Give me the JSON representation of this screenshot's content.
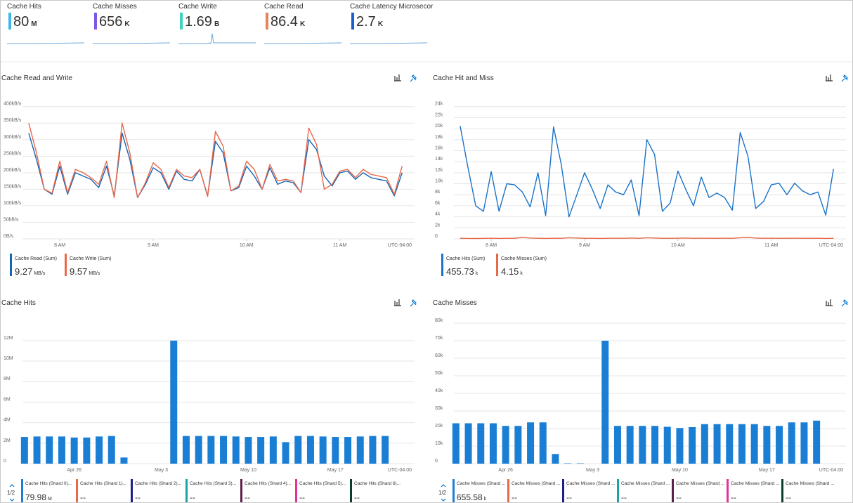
{
  "tiles": [
    {
      "title": "Cache Hits",
      "value": 80,
      "unit": "M",
      "color": "#41b4ea"
    },
    {
      "title": "Cache Misses",
      "value": 656,
      "unit": "K",
      "color": "#7b56e8"
    },
    {
      "title": "Cache Write",
      "value": 1.69,
      "unit": "B",
      "color": "#3fd1bd"
    },
    {
      "title": "Cache Read",
      "value": 86.4,
      "unit": "K",
      "color": "#e8845c"
    },
    {
      "title": "Cache Latency Microsecor",
      "value": 2.7,
      "unit": "K",
      "color": "#1a5fd0"
    }
  ],
  "chart_data": [
    {
      "type": "line",
      "title": "Cache Read and Write",
      "x": [
        7.667,
        7.75,
        7.833,
        7.917,
        8,
        8.083,
        8.167,
        8.25,
        8.333,
        8.417,
        8.5,
        8.583,
        8.667,
        8.75,
        8.833,
        8.917,
        9,
        9.083,
        9.167,
        9.25,
        9.333,
        9.417,
        9.5,
        9.583,
        9.667,
        9.75,
        9.833,
        9.917,
        10,
        10.083,
        10.167,
        10.25,
        10.333,
        10.417,
        10.5,
        10.583,
        10.667,
        10.75,
        10.833,
        10.917,
        11,
        11.083,
        11.167,
        11.25,
        11.333,
        11.417,
        11.5,
        11.583,
        11.667
      ],
      "xlim": [
        7.6,
        11.8
      ],
      "xticks": [
        {
          "value": 8,
          "label": "8 AM"
        },
        {
          "value": 9,
          "label": "9 AM"
        },
        {
          "value": 10,
          "label": "10 AM"
        },
        {
          "value": 11,
          "label": "11 AM"
        }
      ],
      "timezone": "UTC-04:00",
      "ylim": [
        0,
        410
      ],
      "yticks": [
        {
          "value": 0,
          "label": "0B/s"
        },
        {
          "value": 50,
          "label": "50kB/s"
        },
        {
          "value": 100,
          "label": "100kB/s"
        },
        {
          "value": 150,
          "label": "150kB/s"
        },
        {
          "value": 200,
          "label": "200kB/s"
        },
        {
          "value": 250,
          "label": "250kB/s"
        },
        {
          "value": 300,
          "label": "300kB/s"
        },
        {
          "value": 350,
          "label": "350kB/s"
        },
        {
          "value": 400,
          "label": "400kB/s"
        }
      ],
      "grid": true,
      "series": [
        {
          "name": "Cache Read (Sum)",
          "color": "#1664b4",
          "total": 9.27,
          "unit": "MB/s",
          "values": [
            320,
            240,
            150,
            135,
            220,
            135,
            200,
            190,
            180,
            155,
            220,
            130,
            320,
            240,
            125,
            165,
            215,
            200,
            150,
            205,
            180,
            175,
            210,
            130,
            295,
            260,
            145,
            155,
            220,
            190,
            150,
            215,
            165,
            175,
            170,
            140,
            300,
            270,
            190,
            160,
            200,
            205,
            180,
            200,
            185,
            180,
            175,
            130,
            200
          ]
        },
        {
          "name": "Cache Write (Sum)",
          "color": "#e8684a",
          "total": 9.57,
          "unit": "MB/s",
          "values": [
            350,
            260,
            150,
            138,
            235,
            140,
            210,
            200,
            185,
            165,
            235,
            125,
            350,
            260,
            125,
            170,
            230,
            210,
            155,
            210,
            190,
            185,
            210,
            128,
            325,
            280,
            145,
            160,
            235,
            210,
            150,
            225,
            175,
            180,
            175,
            140,
            335,
            285,
            150,
            165,
            205,
            210,
            185,
            210,
            195,
            190,
            185,
            135,
            220
          ]
        }
      ]
    },
    {
      "type": "line",
      "title": "Cache Hit and Miss",
      "x": [
        7.667,
        7.75,
        7.833,
        7.917,
        8,
        8.083,
        8.167,
        8.25,
        8.333,
        8.417,
        8.5,
        8.583,
        8.667,
        8.75,
        8.833,
        8.917,
        9,
        9.083,
        9.167,
        9.25,
        9.333,
        9.417,
        9.5,
        9.583,
        9.667,
        9.75,
        9.833,
        9.917,
        10,
        10.083,
        10.167,
        10.25,
        10.333,
        10.417,
        10.5,
        10.583,
        10.667,
        10.75,
        10.833,
        10.917,
        11,
        11.083,
        11.167,
        11.25,
        11.333,
        11.417,
        11.5,
        11.583,
        11.667
      ],
      "xlim": [
        7.6,
        11.8
      ],
      "xticks": [
        {
          "value": 8,
          "label": "8 AM"
        },
        {
          "value": 9,
          "label": "9 AM"
        },
        {
          "value": 10,
          "label": "10 AM"
        },
        {
          "value": 11,
          "label": "11 AM"
        }
      ],
      "timezone": "UTC-04:00",
      "ylim": [
        0,
        24600
      ],
      "yticks": [
        0,
        {
          "value": 2000,
          "label": "2k"
        },
        {
          "value": 4000,
          "label": "4k"
        },
        {
          "value": 6000,
          "label": "6k"
        },
        {
          "value": 8000,
          "label": "8k"
        },
        {
          "value": 10000,
          "label": "10k"
        },
        {
          "value": 12000,
          "label": "12k"
        },
        {
          "value": 14000,
          "label": "14k"
        },
        {
          "value": 16000,
          "label": "16k"
        },
        {
          "value": 18000,
          "label": "18k"
        },
        {
          "value": 20000,
          "label": "20k"
        },
        {
          "value": 22000,
          "label": "22k"
        },
        {
          "value": 24000,
          "label": "24k"
        }
      ],
      "grid": true,
      "series": [
        {
          "name": "Cache Hits (Sum)",
          "color": "#1a73c8",
          "total": 455.73,
          "unit": "k",
          "values": [
            20500,
            13000,
            6000,
            5000,
            12200,
            5000,
            10000,
            9800,
            8500,
            5800,
            12000,
            4200,
            20300,
            13500,
            4000,
            8000,
            12000,
            9000,
            5500,
            9800,
            8500,
            8000,
            10700,
            4200,
            18000,
            15300,
            5000,
            6500,
            12300,
            9000,
            6000,
            11200,
            7500,
            8300,
            7500,
            5200,
            19300,
            15000,
            5500,
            6800,
            9800,
            10100,
            8000,
            10100,
            8700,
            8000,
            8500,
            4300,
            12700
          ]
        },
        {
          "name": "Cache Misses (Sum)",
          "color": "#e8684a",
          "total": 4.15,
          "unit": "k",
          "values": [
            100,
            80,
            60,
            90,
            120,
            80,
            100,
            100,
            250,
            150,
            100,
            80,
            120,
            100,
            200,
            150,
            100,
            100,
            80,
            100,
            120,
            100,
            150,
            100,
            200,
            150,
            100,
            100,
            120,
            150,
            100,
            120,
            100,
            100,
            120,
            100,
            200,
            250,
            150,
            100,
            120,
            100,
            100,
            120,
            100,
            100,
            100,
            80,
            100
          ]
        }
      ]
    },
    {
      "type": "bar",
      "title": "Cache Hits",
      "categories": [
        null,
        null,
        null,
        null,
        "Apr 26",
        null,
        null,
        null,
        null,
        null,
        null,
        "May 3",
        null,
        null,
        null,
        null,
        null,
        null,
        "May 10",
        null,
        null,
        null,
        null,
        null,
        null,
        "May 17",
        null,
        null,
        null,
        null
      ],
      "timezone": "UTC-04:00",
      "ylim": [
        0,
        13700000
      ],
      "yticks": [
        0,
        {
          "value": 2000000,
          "label": "2M"
        },
        {
          "value": 4000000,
          "label": "4M"
        },
        {
          "value": 6000000,
          "label": "6M"
        },
        {
          "value": 8000000,
          "label": "8M"
        },
        {
          "value": 10000000,
          "label": "10M"
        },
        {
          "value": 12000000,
          "label": "12M"
        }
      ],
      "grid": true,
      "pager": "1/2",
      "series": [
        {
          "name": "Cache Hits (Shard 0)...",
          "color": "#1a7fd4",
          "total": 79.98,
          "unit": "M",
          "values": [
            2600000,
            2650000,
            2650000,
            2650000,
            2550000,
            2550000,
            2650000,
            2700000,
            600000,
            null,
            null,
            null,
            12000000,
            2700000,
            2700000,
            2700000,
            2700000,
            2650000,
            2600000,
            2600000,
            2650000,
            2100000,
            2700000,
            2700000,
            2650000,
            2600000,
            2600000,
            2650000,
            2700000,
            2700000
          ]
        },
        {
          "name": "Cache Hits (Shard 1)...",
          "color": "#e8684a",
          "total": "--"
        },
        {
          "name": "Cache Hits (Shard 2)...",
          "color": "#1b1f8a",
          "total": "--"
        },
        {
          "name": "Cache Hits (Shard 3)...",
          "color": "#1aa3a3",
          "total": "--"
        },
        {
          "name": "Cache Hits (Shard 4)...",
          "color": "#5c1f4a",
          "total": "--"
        },
        {
          "name": "Cache Hits (Shard 5)...",
          "color": "#e0339a",
          "total": "--"
        },
        {
          "name": "Cache Hits (Shard 6)...",
          "color": "#0b3d2e",
          "total": "--"
        }
      ]
    },
    {
      "type": "bar",
      "title": "Cache Misses",
      "categories": [
        null,
        null,
        null,
        null,
        "Apr 26",
        null,
        null,
        null,
        null,
        null,
        null,
        "May 3",
        null,
        null,
        null,
        null,
        null,
        null,
        "May 10",
        null,
        null,
        null,
        null,
        null,
        null,
        "May 17",
        null,
        null,
        null,
        null
      ],
      "timezone": "UTC-04:00",
      "ylim": [
        0,
        80000
      ],
      "yticks": [
        0,
        {
          "value": 10000,
          "label": "10k"
        },
        {
          "value": 20000,
          "label": "20k"
        },
        {
          "value": 30000,
          "label": "30k"
        },
        {
          "value": 40000,
          "label": "40k"
        },
        {
          "value": 50000,
          "label": "50k"
        },
        {
          "value": 60000,
          "label": "60k"
        },
        {
          "value": 70000,
          "label": "70k"
        },
        {
          "value": 80000,
          "label": "80k"
        }
      ],
      "grid": true,
      "pager": "1/2",
      "series": [
        {
          "name": "Cache Misses (Shard ...",
          "color": "#1a7fd4",
          "total": 655.58,
          "unit": "k",
          "values": [
            23000,
            23000,
            23000,
            23000,
            21500,
            21500,
            23500,
            23500,
            5500,
            200,
            200,
            null,
            70000,
            21500,
            21500,
            21500,
            21500,
            21000,
            20300,
            20800,
            22500,
            22500,
            22500,
            22500,
            22500,
            21500,
            21500,
            23500,
            23500,
            24500
          ]
        },
        {
          "name": "Cache Misses (Shard ...",
          "color": "#e8684a",
          "total": "--"
        },
        {
          "name": "Cache Misses (Shard ...",
          "color": "#1b1f8a",
          "total": "--"
        },
        {
          "name": "Cache Misses (Shard ...",
          "color": "#1aa3a3",
          "total": "--"
        },
        {
          "name": "Cache Misses (Shard ...",
          "color": "#5c1f4a",
          "total": "--"
        },
        {
          "name": "Cache Misses (Shard ...",
          "color": "#e0339a",
          "total": "--"
        },
        {
          "name": "Cache Misses (Shard ...",
          "color": "#0b3d2e",
          "total": "--"
        }
      ]
    }
  ]
}
